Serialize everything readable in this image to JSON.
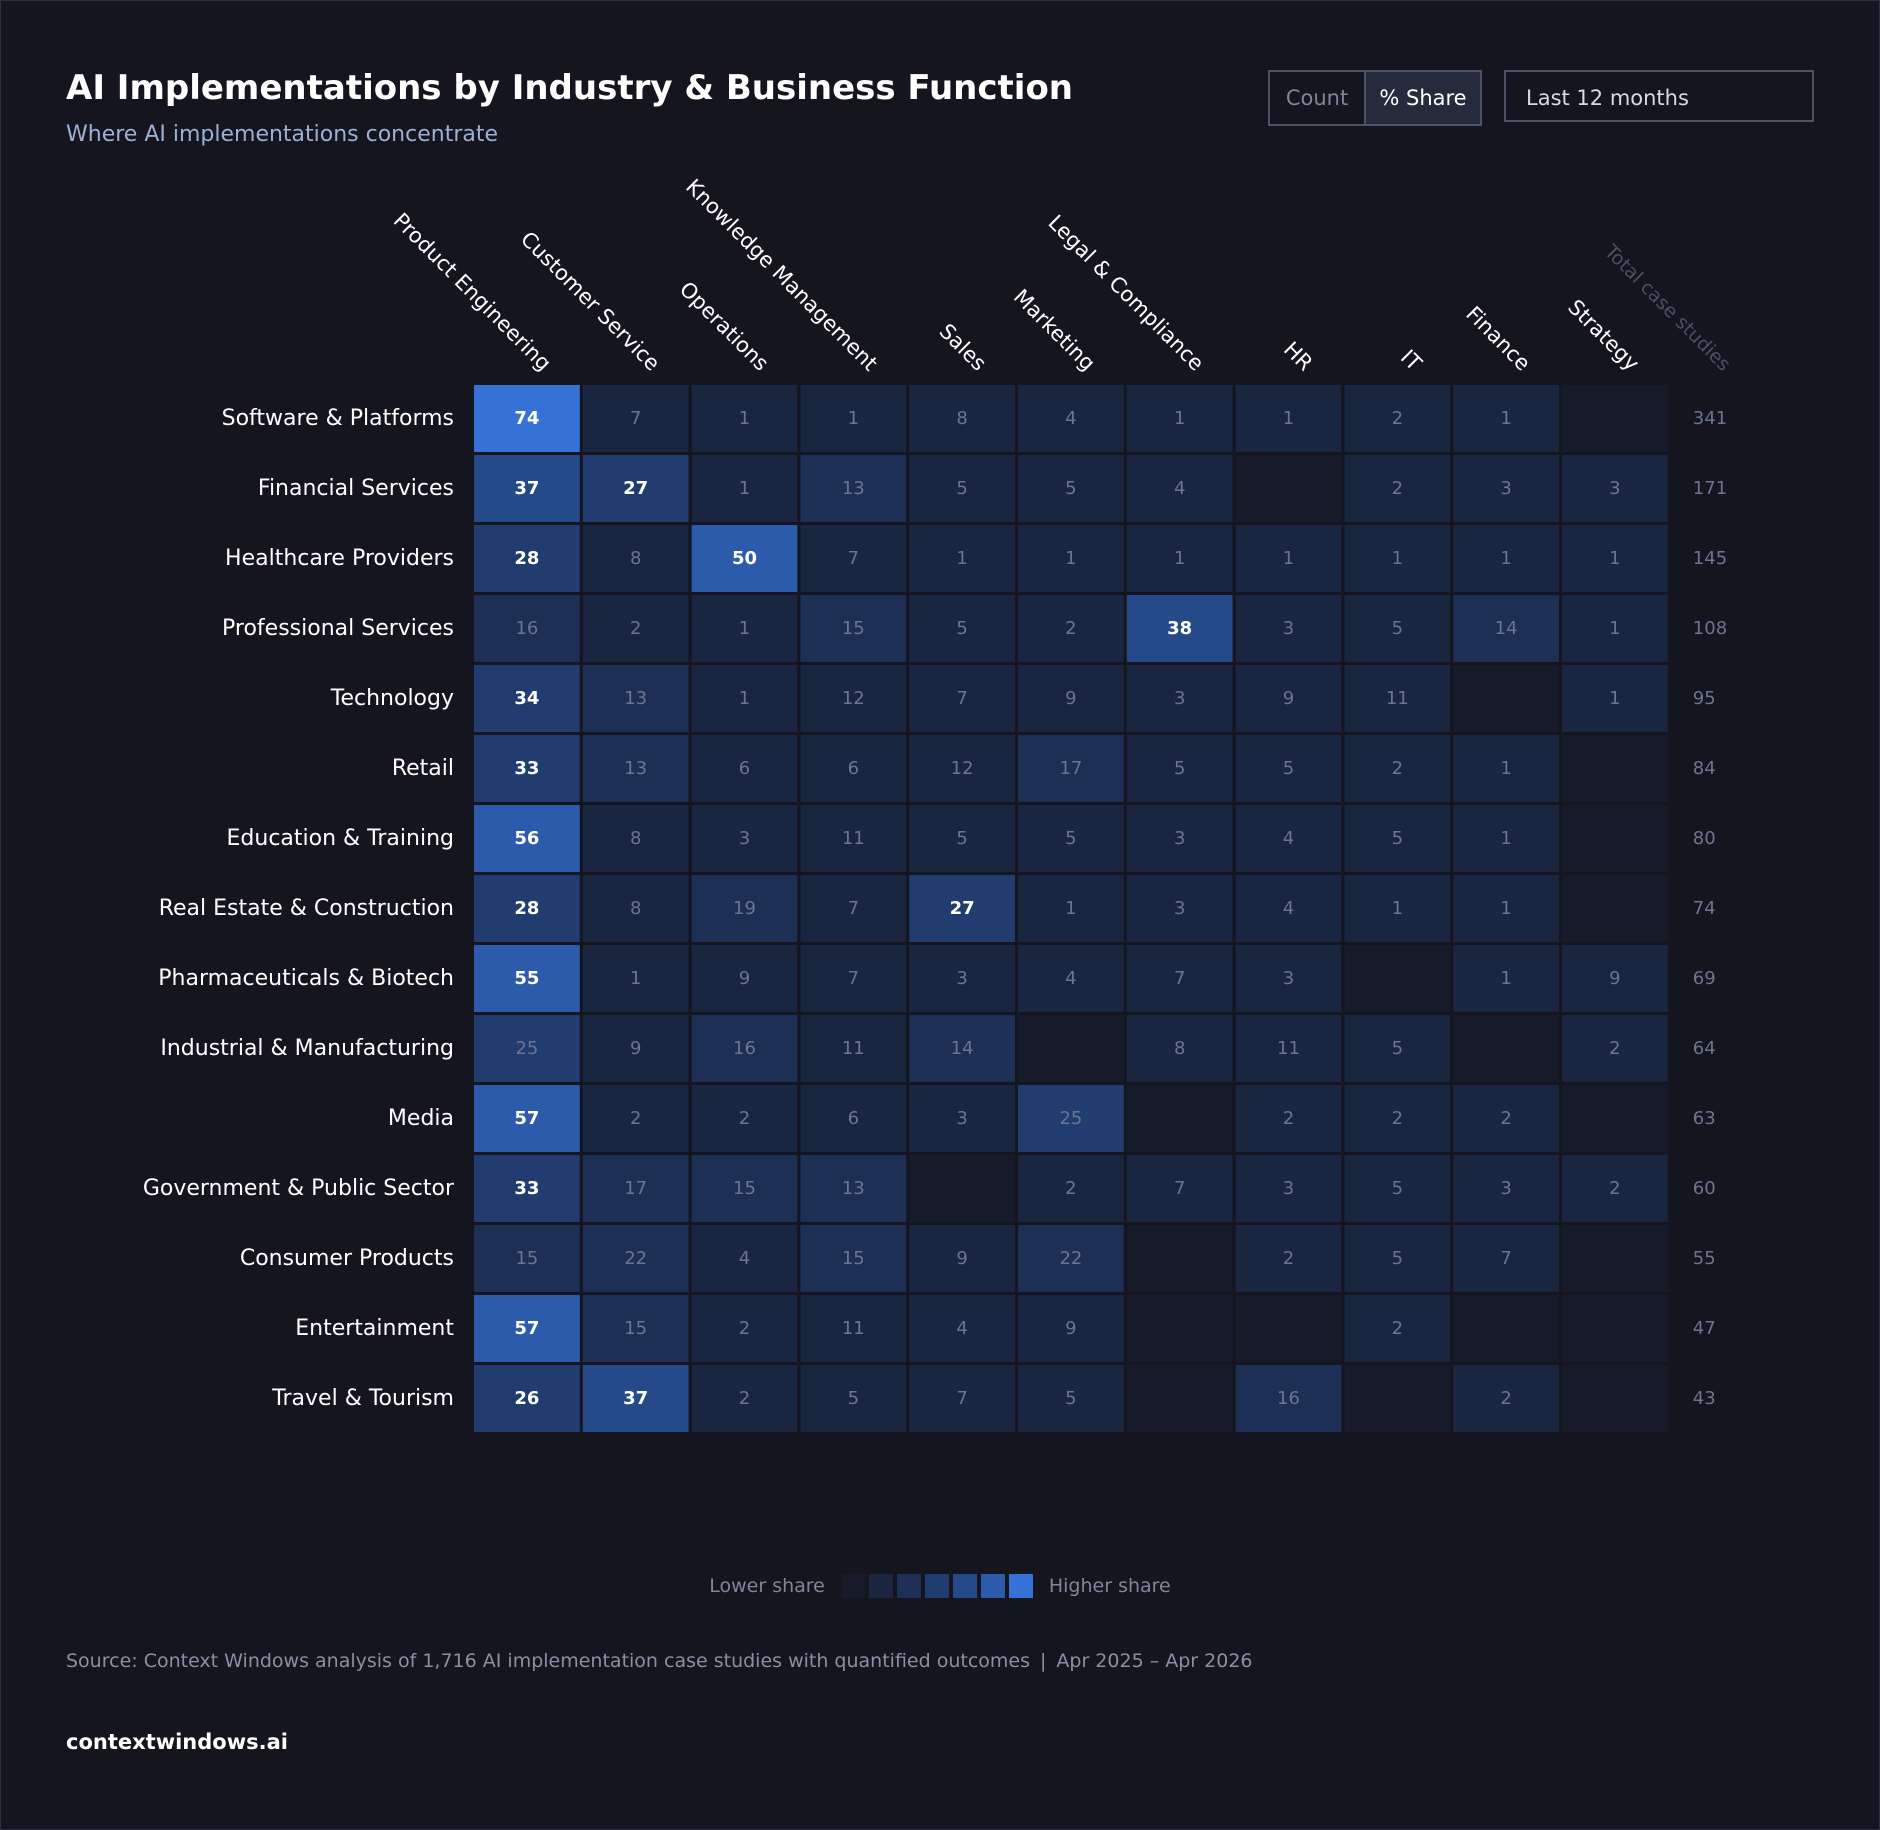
{
  "header": {
    "title": "AI Implementations by Industry & Business Function",
    "subtitle": "Where AI implementations concentrate"
  },
  "controls": {
    "toggle": [
      "Count",
      "% Share"
    ],
    "active": "% Share",
    "period": "Last 12 months"
  },
  "chart_data": {
    "type": "heatmap",
    "title": "AI Implementations by Industry & Business Function",
    "columns": [
      "Product Engineering",
      "Customer Service",
      "Operations",
      "Knowledge Management",
      "Sales",
      "Marketing",
      "Legal & Compliance",
      "HR",
      "IT",
      "Finance",
      "Strategy"
    ],
    "total_label": "Total case studies",
    "rows": [
      {
        "name": "Software & Platforms",
        "values": [
          74,
          7,
          1,
          1,
          8,
          4,
          1,
          1,
          2,
          1,
          null
        ],
        "total": 341
      },
      {
        "name": "Financial Services",
        "values": [
          37,
          27,
          1,
          13,
          5,
          5,
          4,
          null,
          2,
          3,
          3
        ],
        "total": 171
      },
      {
        "name": "Healthcare Providers",
        "values": [
          28,
          8,
          50,
          7,
          1,
          1,
          1,
          1,
          1,
          1,
          1
        ],
        "total": 145
      },
      {
        "name": "Professional Services",
        "values": [
          16,
          2,
          1,
          15,
          5,
          2,
          38,
          3,
          5,
          14,
          1
        ],
        "total": 108
      },
      {
        "name": "Technology",
        "values": [
          34,
          13,
          1,
          12,
          7,
          9,
          3,
          9,
          11,
          null,
          1
        ],
        "total": 95
      },
      {
        "name": "Retail",
        "values": [
          33,
          13,
          6,
          6,
          12,
          17,
          5,
          5,
          2,
          1,
          null
        ],
        "total": 84
      },
      {
        "name": "Education & Training",
        "values": [
          56,
          8,
          3,
          11,
          5,
          5,
          3,
          4,
          5,
          1,
          null
        ],
        "total": 80
      },
      {
        "name": "Real Estate & Construction",
        "values": [
          28,
          8,
          19,
          7,
          27,
          1,
          3,
          4,
          1,
          1,
          null
        ],
        "total": 74
      },
      {
        "name": "Pharmaceuticals & Biotech",
        "values": [
          55,
          1,
          9,
          7,
          3,
          4,
          7,
          3,
          null,
          1,
          9
        ],
        "total": 69
      },
      {
        "name": "Industrial & Manufacturing",
        "values": [
          25,
          9,
          16,
          11,
          14,
          null,
          8,
          11,
          5,
          null,
          2
        ],
        "total": 64
      },
      {
        "name": "Media",
        "values": [
          57,
          2,
          2,
          6,
          3,
          25,
          null,
          2,
          2,
          2,
          null
        ],
        "total": 63
      },
      {
        "name": "Government & Public Sector",
        "values": [
          33,
          17,
          15,
          13,
          null,
          2,
          7,
          3,
          5,
          3,
          2
        ],
        "total": 60
      },
      {
        "name": "Consumer Products",
        "values": [
          15,
          22,
          4,
          15,
          9,
          22,
          null,
          2,
          5,
          7,
          null
        ],
        "total": 55
      },
      {
        "name": "Entertainment",
        "values": [
          57,
          15,
          2,
          11,
          4,
          9,
          null,
          null,
          2,
          null,
          null
        ],
        "total": 47
      },
      {
        "name": "Travel & Tourism",
        "values": [
          26,
          37,
          2,
          5,
          7,
          5,
          null,
          16,
          null,
          2,
          null
        ],
        "total": 43
      }
    ],
    "highlight_threshold": 26,
    "legend": {
      "low": "Lower share",
      "high": "Higher share"
    },
    "scale_colors": [
      "#161a29",
      "#1a2540",
      "#1d2f55",
      "#213c6e",
      "#254a8a",
      "#2c5bab",
      "#3572d6"
    ]
  },
  "footer": {
    "source": "Source: Context Windows analysis of 1,716 AI implementation case studies with quantified outcomes",
    "separator": "|",
    "date_range": "Apr 2025 – Apr 2026",
    "brand": "contextwindows.ai"
  }
}
